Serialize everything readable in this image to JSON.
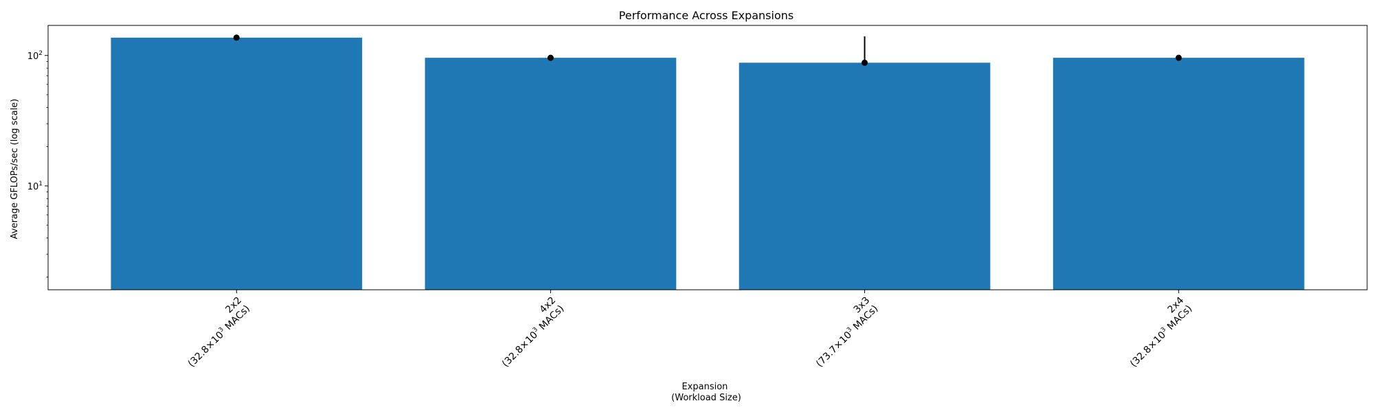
{
  "chart_data": {
    "type": "bar",
    "title": "Performance Across Expansions",
    "xlabel_lines": [
      "Expansion",
      "(Workload Size)"
    ],
    "ylabel": "Average GFLOPs/sec (log scale)",
    "yscale": "log",
    "ylim": [
      1.6,
      170
    ],
    "yticks": [
      {
        "value": 10,
        "base": "10",
        "exp": "1"
      },
      {
        "value": 100,
        "base": "10",
        "exp": "2"
      }
    ],
    "categories": [
      {
        "line1": "2x2",
        "size_prefix": "(32.8×10",
        "size_exp": "3",
        "size_suffix": " MACs)"
      },
      {
        "line1": "4x2",
        "size_prefix": "(32.8×10",
        "size_exp": "3",
        "size_suffix": " MACs)"
      },
      {
        "line1": "3x3",
        "size_prefix": "(73.7×10",
        "size_exp": "3",
        "size_suffix": " MACs)"
      },
      {
        "line1": "2x4",
        "size_prefix": "(32.8×10",
        "size_exp": "3",
        "size_suffix": " MACs)"
      }
    ],
    "values": [
      137,
      96,
      88,
      96
    ],
    "error_low": [
      135,
      92,
      88,
      93
    ],
    "error_high": [
      139,
      100,
      140,
      99
    ],
    "bar_color": "#1f77b4",
    "error_color": "#000000",
    "grid": false
  }
}
